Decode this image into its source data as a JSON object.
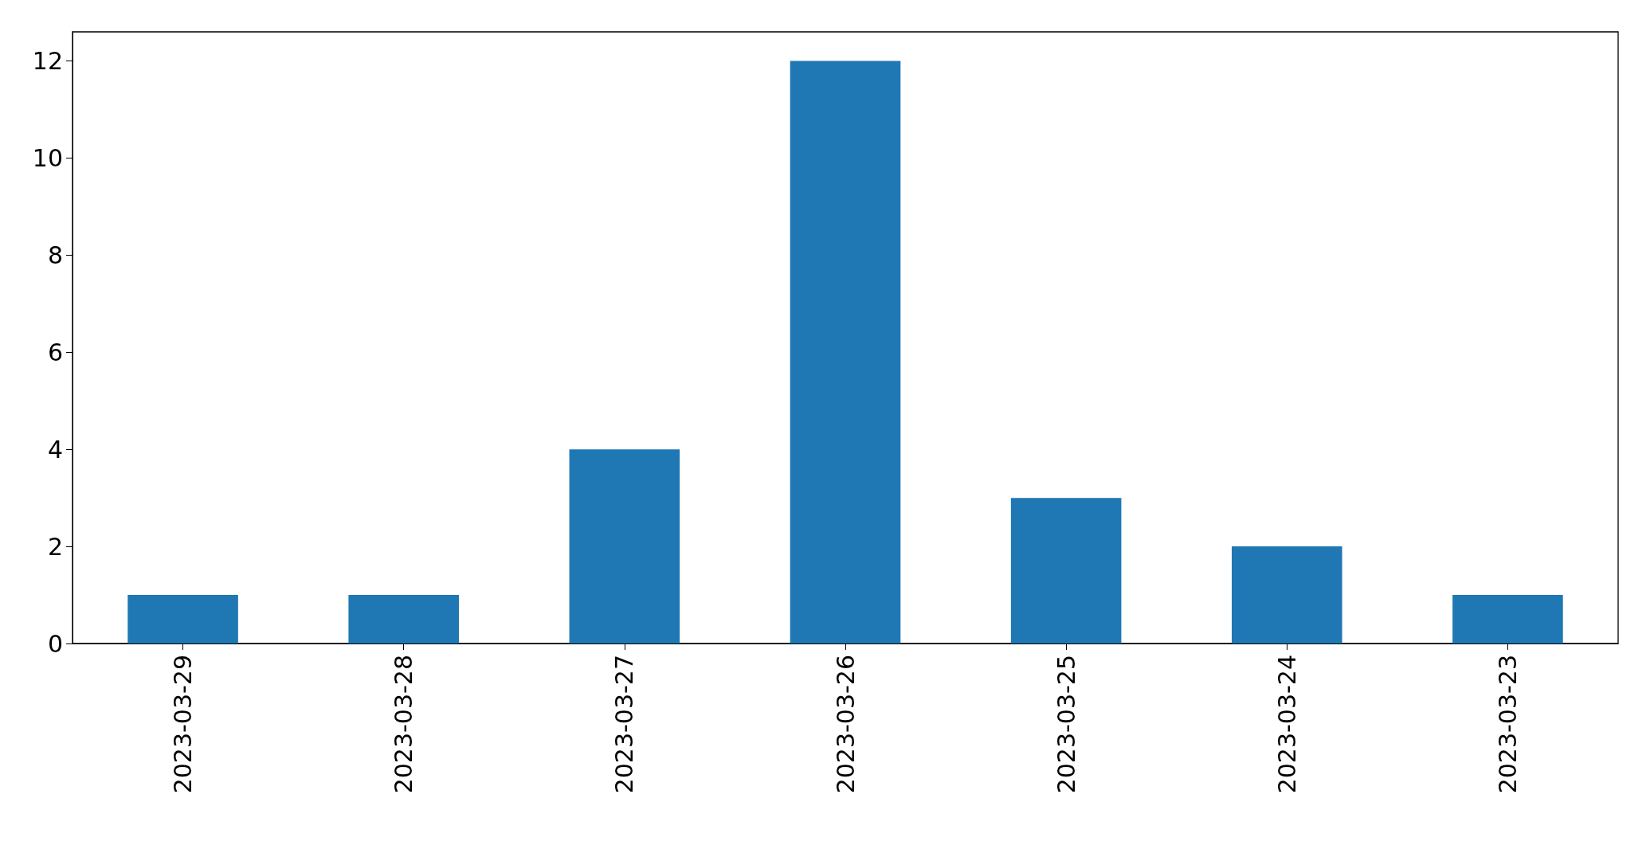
{
  "chart_data": {
    "type": "bar",
    "categories": [
      "2023-03-29",
      "2023-03-28",
      "2023-03-27",
      "2023-03-26",
      "2023-03-25",
      "2023-03-24",
      "2023-03-23"
    ],
    "values": [
      1,
      1,
      4,
      12,
      3,
      2,
      1
    ],
    "color": "#1f77b4",
    "ylim": [
      0,
      12.6
    ],
    "yticks": [
      0,
      2,
      4,
      6,
      8,
      10,
      12
    ],
    "grid": false
  }
}
